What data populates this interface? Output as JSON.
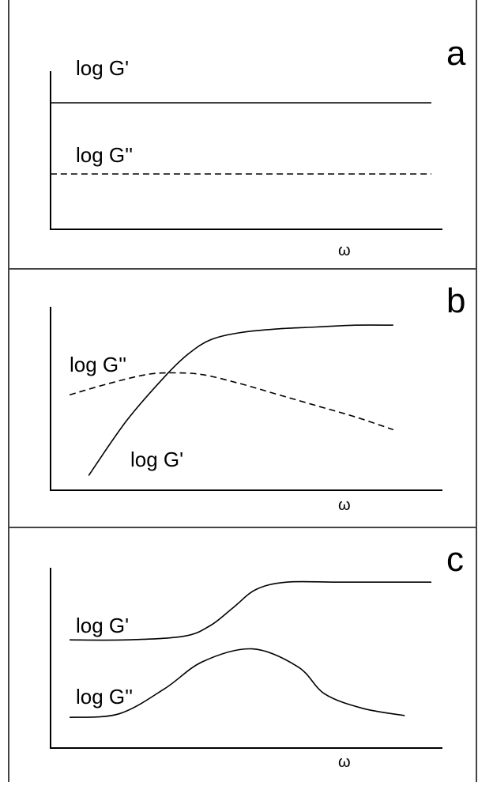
{
  "chart_data": [
    {
      "type": "line",
      "panel": "a",
      "xlabel": "ω",
      "ylabel": "",
      "series": [
        {
          "name": "log G'",
          "style": "solid",
          "x": [
            0,
            1
          ],
          "y": [
            0.8,
            0.8
          ]
        },
        {
          "name": "log G''",
          "style": "dashed",
          "x": [
            0,
            1
          ],
          "y": [
            0.35,
            0.35
          ]
        }
      ]
    },
    {
      "type": "line",
      "panel": "b",
      "xlabel": "ω",
      "ylabel": "",
      "series": [
        {
          "name": "log G'",
          "style": "solid",
          "x": [
            0.1,
            0.2,
            0.3,
            0.36,
            0.42,
            0.5,
            0.6,
            0.7,
            0.8,
            0.9
          ],
          "y": [
            0.08,
            0.38,
            0.62,
            0.74,
            0.82,
            0.86,
            0.88,
            0.89,
            0.9,
            0.9
          ]
        },
        {
          "name": "log G''",
          "style": "dashed",
          "x": [
            0.05,
            0.15,
            0.25,
            0.32,
            0.4,
            0.5,
            0.6,
            0.7,
            0.8,
            0.9
          ],
          "y": [
            0.52,
            0.58,
            0.63,
            0.64,
            0.63,
            0.58,
            0.52,
            0.46,
            0.4,
            0.33
          ]
        }
      ]
    },
    {
      "type": "line",
      "panel": "c",
      "xlabel": "ω",
      "ylabel": "",
      "series": [
        {
          "name": "log G'",
          "style": "solid",
          "x": [
            0.05,
            0.2,
            0.35,
            0.42,
            0.48,
            0.54,
            0.62,
            0.75,
            0.9,
            1.0
          ],
          "y": [
            0.6,
            0.6,
            0.62,
            0.68,
            0.78,
            0.88,
            0.92,
            0.92,
            0.92,
            0.92
          ]
        },
        {
          "name": "log G''",
          "style": "solid",
          "x": [
            0.05,
            0.18,
            0.3,
            0.4,
            0.53,
            0.65,
            0.72,
            0.82,
            0.93
          ],
          "y": [
            0.17,
            0.19,
            0.33,
            0.48,
            0.55,
            0.45,
            0.3,
            0.22,
            0.18
          ]
        }
      ]
    }
  ],
  "panels": [
    {
      "letter": "a",
      "label_top": "log G'",
      "label_bottom": "log G''",
      "xlabel": "ω"
    },
    {
      "letter": "b",
      "label_top": "log G''",
      "label_bottom": "log G'",
      "xlabel": "ω"
    },
    {
      "letter": "c",
      "label_top": "log G'",
      "label_bottom": "log G''",
      "xlabel": "ω"
    }
  ]
}
